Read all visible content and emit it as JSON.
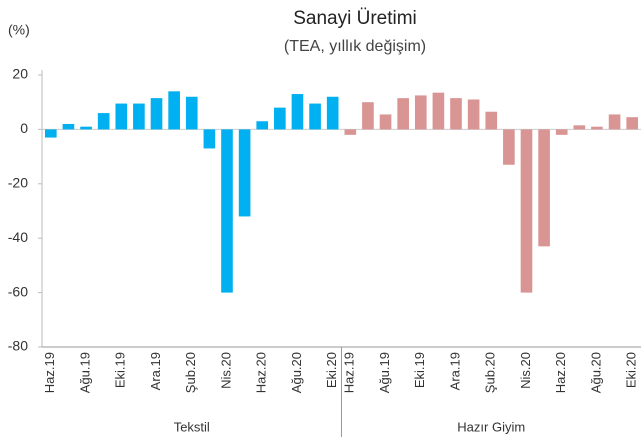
{
  "chart_data": {
    "type": "bar",
    "title": "Sanayi Üretimi",
    "subtitle": "(TEA, yıllık değişim)",
    "y_label": "(%)",
    "categories": [
      "Haz.19",
      null,
      "Ağu.19",
      null,
      "Eki.19",
      null,
      "Ara.19",
      null,
      "Şub.20",
      null,
      "Nis.20",
      null,
      "Haz.20",
      null,
      "Ağu.20",
      null,
      "Eki.20"
    ],
    "series": [
      {
        "name": "Tekstil",
        "color": "#00b0f0",
        "values": [
          -3,
          2,
          1,
          6,
          9.5,
          9.5,
          11.5,
          14,
          12,
          -7,
          -60,
          -32,
          3,
          8,
          13,
          9.5,
          12
        ]
      },
      {
        "name": "Hazır Giyim",
        "color": "#d99594",
        "values": [
          -2,
          10,
          5.5,
          11.5,
          12.5,
          13.5,
          11.5,
          11,
          6.5,
          -13,
          -60,
          -43,
          -2,
          1.5,
          1,
          5.5,
          4.5
        ]
      }
    ],
    "ylim": [
      -80,
      20
    ],
    "yticks": [
      -80,
      -60,
      -40,
      -20,
      0,
      20
    ]
  }
}
